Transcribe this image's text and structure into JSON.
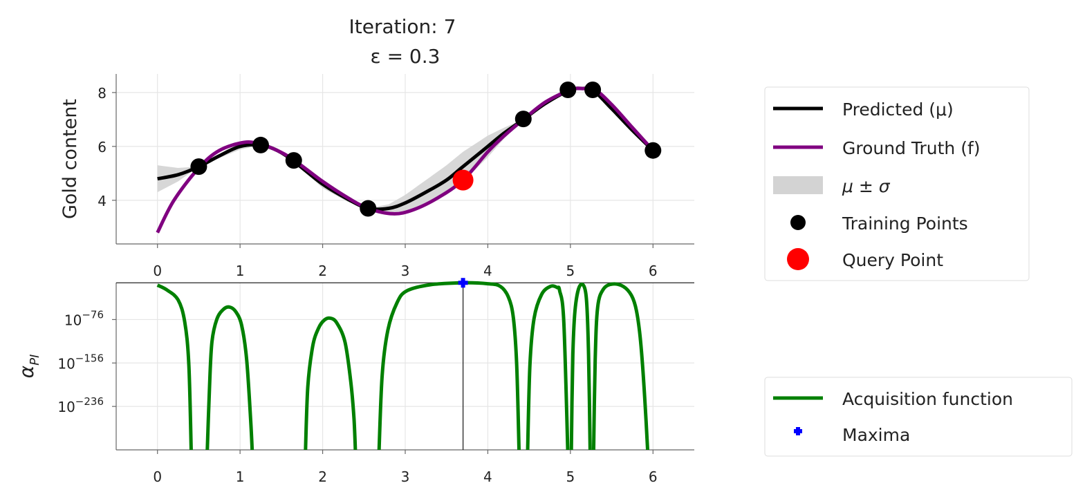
{
  "title_line1": "Iteration: 7",
  "title_line2": "ε = 0.3",
  "colors": {
    "predicted": "#000000",
    "truth": "#800080",
    "band": "#d3d3d3",
    "train": "#000000",
    "query": "#ff0000",
    "acq": "#008000",
    "maxima": "#0000ff"
  },
  "chart_data": [
    {
      "type": "line",
      "title": "Iteration: 7 ε = 0.3",
      "xlabel": "",
      "ylabel": "Gold content",
      "xlim": [
        -0.5,
        6.5
      ],
      "ylim": [
        2.38,
        8.69
      ],
      "grid": true,
      "xticks": [
        "0",
        "1",
        "2",
        "3",
        "4",
        "5",
        "6"
      ],
      "yticks": [
        "4",
        "6",
        "8"
      ],
      "xtick_values": [
        0,
        1,
        2,
        3,
        4,
        5,
        6
      ],
      "ytick_values": [
        4,
        6,
        8
      ],
      "legend_position": "right",
      "series": [
        {
          "name": "Predicted (μ)",
          "type": "line",
          "x": [
            0,
            0.25,
            0.5,
            0.75,
            1.0,
            1.25,
            1.45,
            1.65,
            2.0,
            2.3,
            2.55,
            2.8,
            3.0,
            3.25,
            3.5,
            3.7,
            4.0,
            4.2,
            4.43,
            4.7,
            5.0,
            5.15,
            5.27,
            5.5,
            5.75,
            6.0
          ],
          "y": [
            4.8,
            4.95,
            5.25,
            5.65,
            6.0,
            6.05,
            5.85,
            5.45,
            4.6,
            4.05,
            3.7,
            3.7,
            3.9,
            4.3,
            4.75,
            5.25,
            6.0,
            6.5,
            7.0,
            7.6,
            8.1,
            8.15,
            8.1,
            7.4,
            6.6,
            5.85
          ]
        },
        {
          "name": "Ground Truth (f)",
          "type": "line",
          "x": [
            0,
            0.2,
            0.5,
            0.75,
            1.05,
            1.25,
            1.45,
            1.65,
            2.0,
            2.3,
            2.55,
            2.85,
            3.1,
            3.4,
            3.7,
            4.0,
            4.2,
            4.43,
            4.7,
            5.0,
            5.15,
            5.3,
            5.5,
            5.75,
            6.0
          ],
          "y": [
            2.8,
            4.0,
            5.2,
            5.85,
            6.15,
            6.08,
            5.85,
            5.5,
            4.7,
            4.1,
            3.7,
            3.5,
            3.65,
            4.1,
            4.75,
            5.8,
            6.4,
            7.0,
            7.65,
            8.1,
            8.15,
            8.1,
            7.55,
            6.7,
            5.85
          ]
        },
        {
          "name": "μ ± σ",
          "type": "band",
          "x": [
            0,
            0.25,
            0.5,
            0.75,
            1.0,
            1.25,
            1.45,
            1.65,
            2.0,
            2.3,
            2.55,
            2.8,
            3.0,
            3.25,
            3.5,
            3.7,
            4.0,
            4.2,
            4.43,
            6.0
          ],
          "sigma": [
            0.5,
            0.25,
            0.0,
            0.08,
            0.12,
            0.0,
            0.05,
            0.0,
            0.15,
            0.1,
            0.0,
            0.15,
            0.3,
            0.45,
            0.55,
            0.55,
            0.4,
            0.2,
            0.0,
            0.0
          ]
        },
        {
          "name": "Training Points",
          "type": "scatter",
          "x": [
            0.5,
            1.25,
            1.65,
            2.55,
            4.43,
            4.97,
            5.27,
            6.0
          ],
          "y": [
            5.25,
            6.05,
            5.48,
            3.7,
            7.02,
            8.1,
            8.1,
            5.85
          ]
        },
        {
          "name": "Query Point",
          "type": "scatter",
          "x": [
            3.7
          ],
          "y": [
            4.75
          ]
        }
      ]
    },
    {
      "type": "line",
      "xlabel": "",
      "ylabel": "α_PI",
      "ylabel_main": "α",
      "ylabel_sub": "PI",
      "yscale": "log",
      "xlim": [
        -0.5,
        6.5
      ],
      "ylim_log10": [
        -316,
        -8
      ],
      "grid": true,
      "xticks": [
        "0",
        "1",
        "2",
        "3",
        "4",
        "5",
        "6"
      ],
      "xtick_values": [
        0,
        1,
        2,
        3,
        4,
        5,
        6
      ],
      "yticks": [
        {
          "base": "10",
          "exp": "−76"
        },
        {
          "base": "10",
          "exp": "−156"
        },
        {
          "base": "10",
          "exp": "−236"
        }
      ],
      "ytick_values_log10": [
        -76,
        -156,
        -236
      ],
      "legend_position": "right",
      "series": [
        {
          "name": "Acquisition function",
          "type": "line",
          "segments": [
            {
              "x": [
                0,
                0.12,
                0.25,
                0.33,
                0.38,
                0.41
              ],
              "log10y": [
                -12.6,
                -22,
                -40,
                -80,
                -160,
                -330
              ]
            },
            {
              "x": [
                0.6,
                0.63,
                0.66,
                0.72,
                0.8,
                0.875,
                0.95,
                1.02,
                1.08,
                1.13,
                1.15
              ],
              "log10y": [
                -330,
                -200,
                -117,
                -75,
                -57,
                -53,
                -62,
                -87,
                -150,
                -266,
                -330
              ]
            },
            {
              "x": [
                1.79,
                1.82,
                1.88,
                1.95,
                2.02,
                2.09,
                2.17,
                2.27,
                2.34,
                2.38,
                2.4
              ],
              "log10y": [
                -330,
                -200,
                -125,
                -92,
                -77,
                -73.4,
                -82,
                -117,
                -190,
                -260,
                -330
              ]
            },
            {
              "x": [
                2.68,
                2.72,
                2.79,
                2.9,
                3.02,
                3.3,
                3.7,
                4.0,
                4.15,
                4.25,
                4.31,
                4.35,
                4.38
              ],
              "log10y": [
                -330,
                -180,
                -95.6,
                -45,
                -23,
                -12,
                -8.3,
                -10,
                -14.7,
                -35,
                -74,
                -160,
                -330
              ]
            },
            {
              "x": [
                4.48,
                4.51,
                4.56,
                4.65,
                4.76,
                4.84,
                4.87,
                4.92,
                4.97
              ],
              "log10y": [
                -330,
                -160,
                -74,
                -30,
                -14.7,
                -17,
                -23,
                -80,
                -330
              ]
            },
            {
              "x": [
                5.01,
                5.03,
                5.06,
                5.12,
                5.19,
                5.22,
                5.24
              ],
              "log10y": [
                -330,
                -140,
                -53,
                -12.6,
                -31.7,
                -140,
                -330
              ]
            },
            {
              "x": [
                5.28,
                5.3,
                5.33,
                5.4,
                5.51,
                5.64,
                5.74,
                5.8,
                5.85,
                5.9,
                5.94
              ],
              "log10y": [
                -330,
                -150,
                -53,
                -20,
                -10.5,
                -15,
                -31.7,
                -60,
                -117,
                -220,
                -330
              ]
            }
          ]
        },
        {
          "name": "Maxima",
          "type": "scatter",
          "x": [
            3.7
          ],
          "log10y": [
            -8.3
          ]
        }
      ]
    }
  ],
  "legend_top": [
    "Predicted (μ)",
    "Ground Truth (f)",
    "μ ± σ",
    "Training Points",
    "Query Point"
  ],
  "legend_bottom": [
    "Acquisition function",
    "Maxima"
  ]
}
